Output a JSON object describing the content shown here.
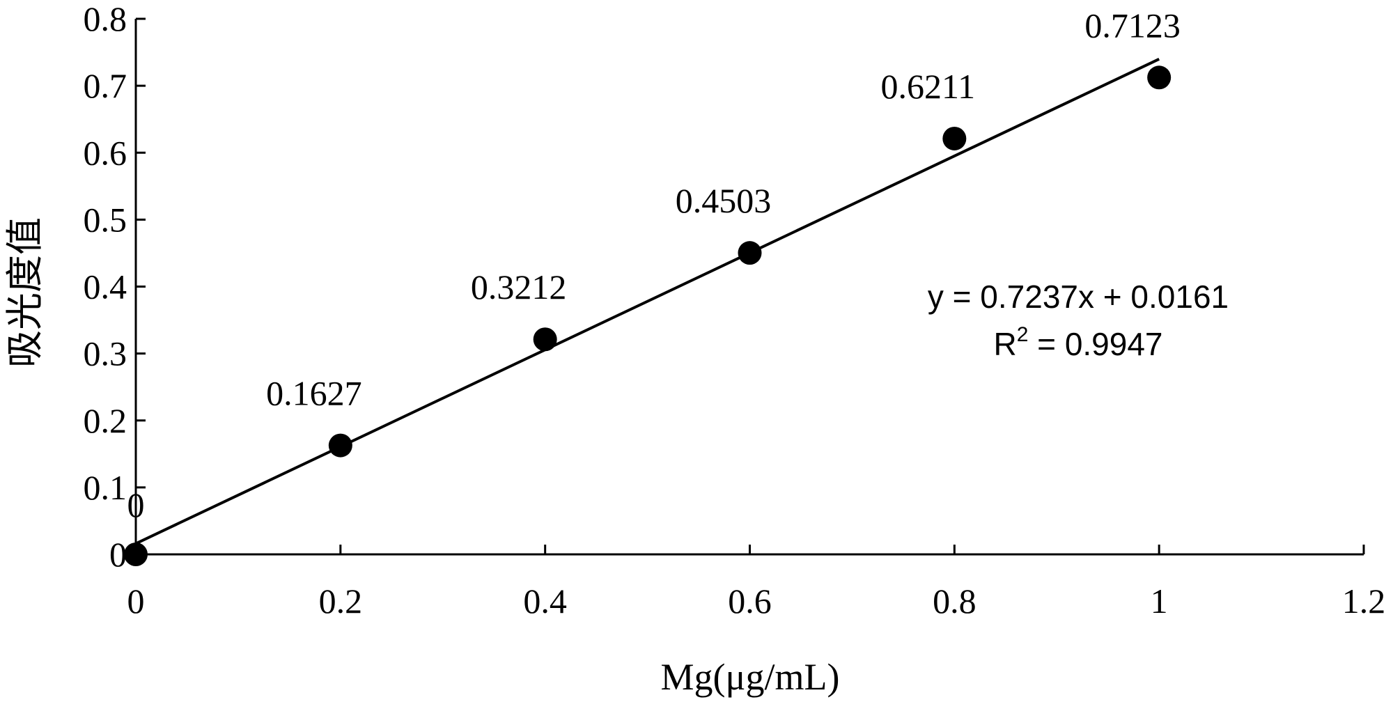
{
  "chart_data": {
    "type": "scatter",
    "title": "",
    "xlabel": "Mg(μg/mL)",
    "ylabel": "吸光度值",
    "xlim": [
      0,
      1.2
    ],
    "ylim": [
      0,
      0.8
    ],
    "x_ticks": [
      "0",
      "0.2",
      "0.4",
      "0.6",
      "0.8",
      "1",
      "1.2"
    ],
    "y_ticks": [
      "0",
      "0.1",
      "0.2",
      "0.3",
      "0.4",
      "0.5",
      "0.6",
      "0.7",
      "0.8"
    ],
    "grid": false,
    "legend": "none",
    "series": [
      {
        "x": [
          0,
          0.2,
          0.4,
          0.6,
          0.8,
          1.0
        ],
        "values": [
          0,
          0.1627,
          0.3212,
          0.4503,
          0.6211,
          0.7123
        ],
        "data_labels": [
          "0",
          "0.1627",
          "0.3212",
          "0.4503",
          "0.6211",
          "0.7123"
        ],
        "color": "#000000"
      }
    ],
    "trendline": {
      "type": "linear",
      "slope": 0.7237,
      "intercept": 0.0161,
      "x_range": [
        0,
        1.0
      ],
      "equation": "y = 0.7237x + 0.0161",
      "r2_prefix": "R",
      "r2_sup": "2",
      "r2_value": " = 0.9947"
    }
  }
}
